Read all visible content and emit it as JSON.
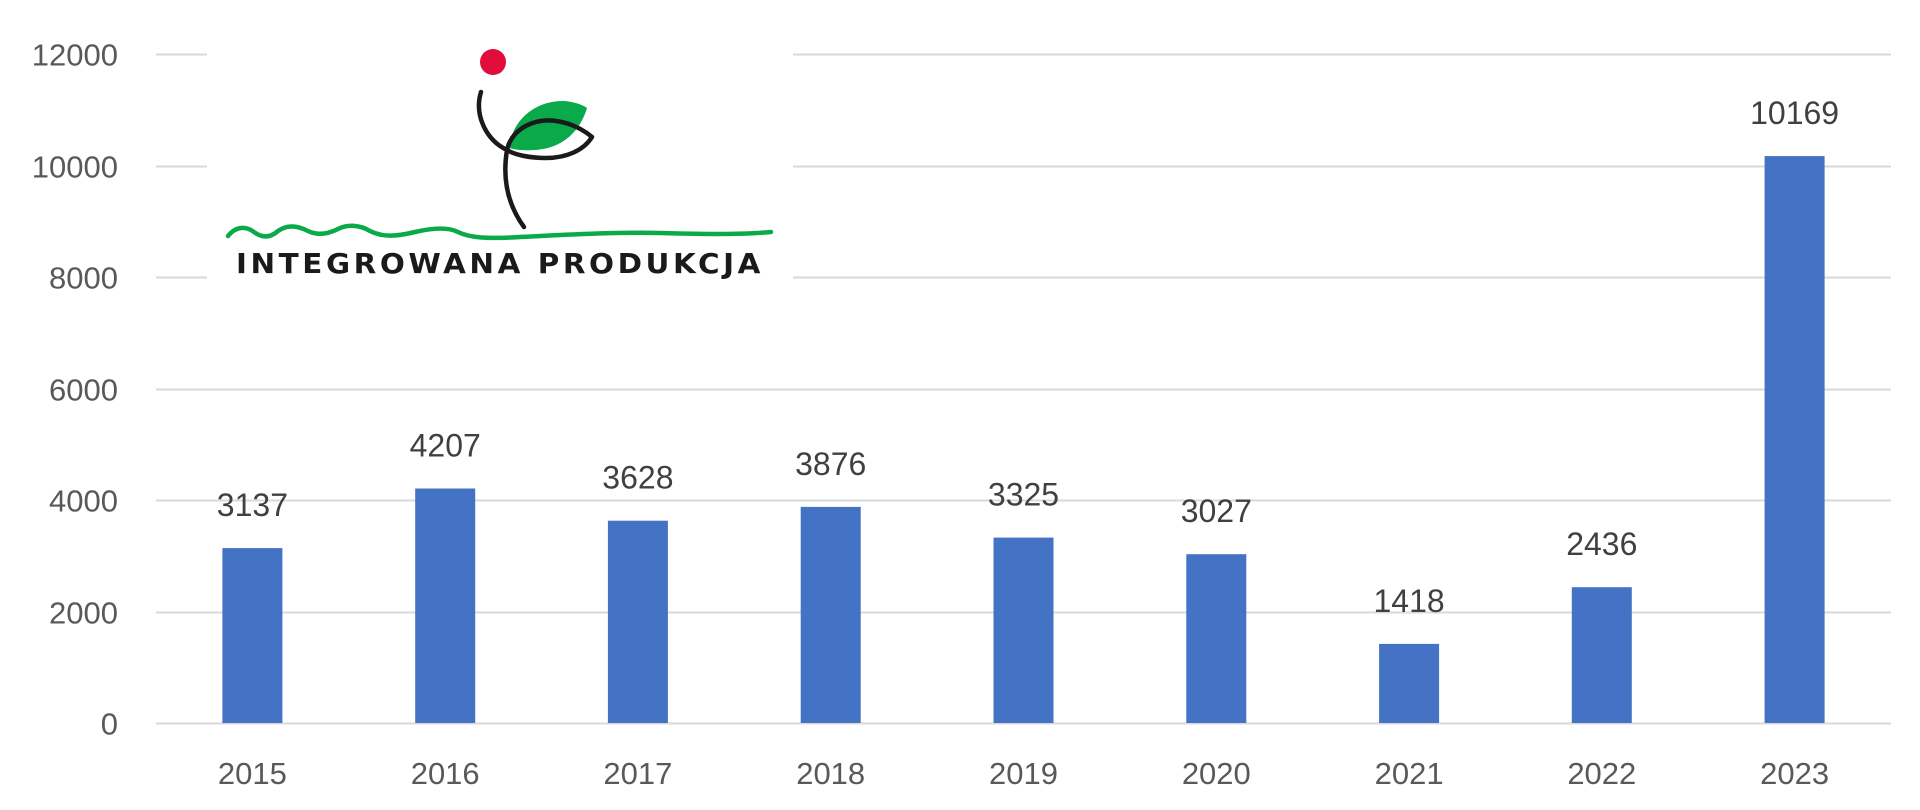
{
  "colors": {
    "bar": "#4472C4",
    "grid": "#D9D9D9",
    "axis_text": "#595959",
    "label_text": "#404040",
    "logo_green": "#0AAA4B",
    "logo_red": "#E20C3B",
    "logo_black": "#1A1A1A"
  },
  "logo": {
    "text": "INTEGROWANA PRODUKCJA",
    "icon": "sprout-leaf-logo-icon"
  },
  "chart_data": {
    "type": "bar",
    "title": "",
    "xlabel": "",
    "ylabel": "",
    "categories": [
      "2015",
      "2016",
      "2017",
      "2018",
      "2019",
      "2020",
      "2021",
      "2022",
      "2023"
    ],
    "values": [
      3137,
      4207,
      3628,
      3876,
      3325,
      3027,
      1418,
      2436,
      10169
    ],
    "data_labels": [
      "3137",
      "4207",
      "3628",
      "3876",
      "3325",
      "3027",
      "1418",
      "2436",
      "10169"
    ],
    "ylim": [
      0,
      12000
    ],
    "yticks": [
      0,
      2000,
      4000,
      6000,
      8000,
      10000,
      12000
    ],
    "ytick_labels": [
      "0",
      "2000",
      "4000",
      "6000",
      "8000",
      "10000",
      "12000"
    ],
    "grid": true,
    "legend": null
  }
}
